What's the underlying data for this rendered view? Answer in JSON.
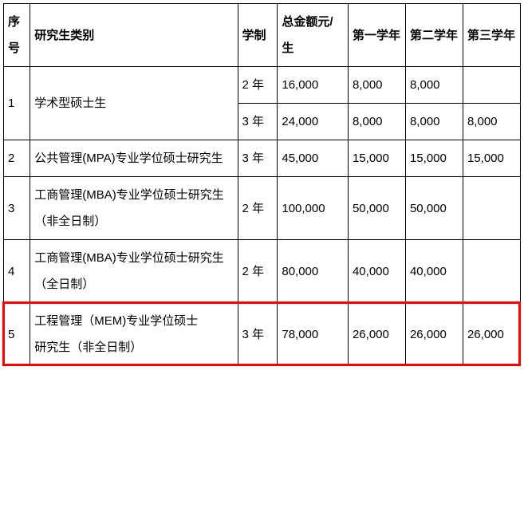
{
  "headers": {
    "seq": "序号",
    "category": "研究生类别",
    "duration": "学制",
    "total": "总金额元/生",
    "year1": "第一学年",
    "year2": "第二学年",
    "year3": "第三学年"
  },
  "rows": [
    {
      "seq": "1",
      "category": "学术型硕士生",
      "sub": [
        {
          "duration": "2 年",
          "total": "16,000",
          "y1": "8,000",
          "y2": "8,000",
          "y3": ""
        },
        {
          "duration": "3 年",
          "total": "24,000",
          "y1": "8,000",
          "y2": "8,000",
          "y3": "8,000"
        }
      ]
    },
    {
      "seq": "2",
      "category": "公共管理(MPA)专业学位硕士研究生",
      "sub": [
        {
          "duration": "3 年",
          "total": "45,000",
          "y1": "15,000",
          "y2": "15,000",
          "y3": "15,000"
        }
      ]
    },
    {
      "seq": "3",
      "category": "工商管理(MBA)专业学位硕士研究生（非全日制）",
      "sub": [
        {
          "duration": "2 年",
          "total": "100,000",
          "y1": "50,000",
          "y2": "50,000",
          "y3": ""
        }
      ]
    },
    {
      "seq": "4",
      "category": "工商管理(MBA)专业学位硕士研究生（全日制）",
      "sub": [
        {
          "duration": "2 年",
          "total": "80,000",
          "y1": "40,000",
          "y2": "40,000",
          "y3": ""
        }
      ]
    },
    {
      "seq": "5",
      "category": "工程管理（MEM)专业学位硕士\n研究生（非全日制）",
      "sub": [
        {
          "duration": "3 年",
          "total": "78,000",
          "y1": "26,000",
          "y2": "26,000",
          "y3": "26,000"
        }
      ],
      "highlight": true
    }
  ],
  "highlight_color": "#ff0000"
}
